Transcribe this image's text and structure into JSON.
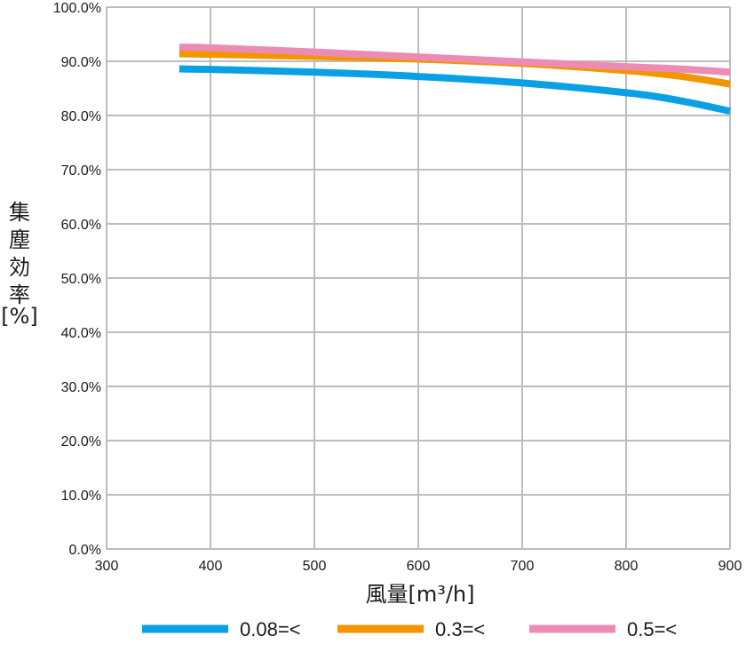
{
  "chart_data": {
    "type": "line",
    "title": "",
    "xlabel": "風量[m³/h]",
    "ylabel_chars": [
      "集",
      "塵",
      "効",
      "率",
      "[%]"
    ],
    "xlim": [
      300,
      900
    ],
    "ylim": [
      0,
      100
    ],
    "x_ticks": [
      300,
      400,
      500,
      600,
      700,
      800,
      900
    ],
    "y_ticks": [
      0,
      10,
      20,
      30,
      40,
      50,
      60,
      70,
      80,
      90,
      100
    ],
    "y_tick_labels": [
      "0.0%",
      "10.0%",
      "20.0%",
      "30.0%",
      "40.0%",
      "50.0%",
      "60.0%",
      "70.0%",
      "80.0%",
      "90.0%",
      "100.0%"
    ],
    "grid": true,
    "legend_position": "bottom",
    "series": [
      {
        "name": "0.08=<",
        "color": "#0aa0e6",
        "x": [
          370,
          400,
          500,
          600,
          700,
          800,
          850,
          900
        ],
        "y": [
          88.6,
          88.5,
          88.0,
          87.2,
          86.0,
          84.2,
          82.8,
          80.8
        ]
      },
      {
        "name": "0.3=<",
        "color": "#f29600",
        "x": [
          370,
          400,
          500,
          600,
          700,
          800,
          850,
          900
        ],
        "y": [
          91.4,
          91.3,
          90.9,
          90.4,
          89.6,
          88.3,
          87.3,
          85.8
        ]
      },
      {
        "name": "0.5=<",
        "color": "#ec8cb4",
        "x": [
          370,
          400,
          500,
          600,
          700,
          800,
          850,
          900
        ],
        "y": [
          92.6,
          92.5,
          91.7,
          90.8,
          89.9,
          89.0,
          88.6,
          88.0
        ]
      }
    ]
  }
}
